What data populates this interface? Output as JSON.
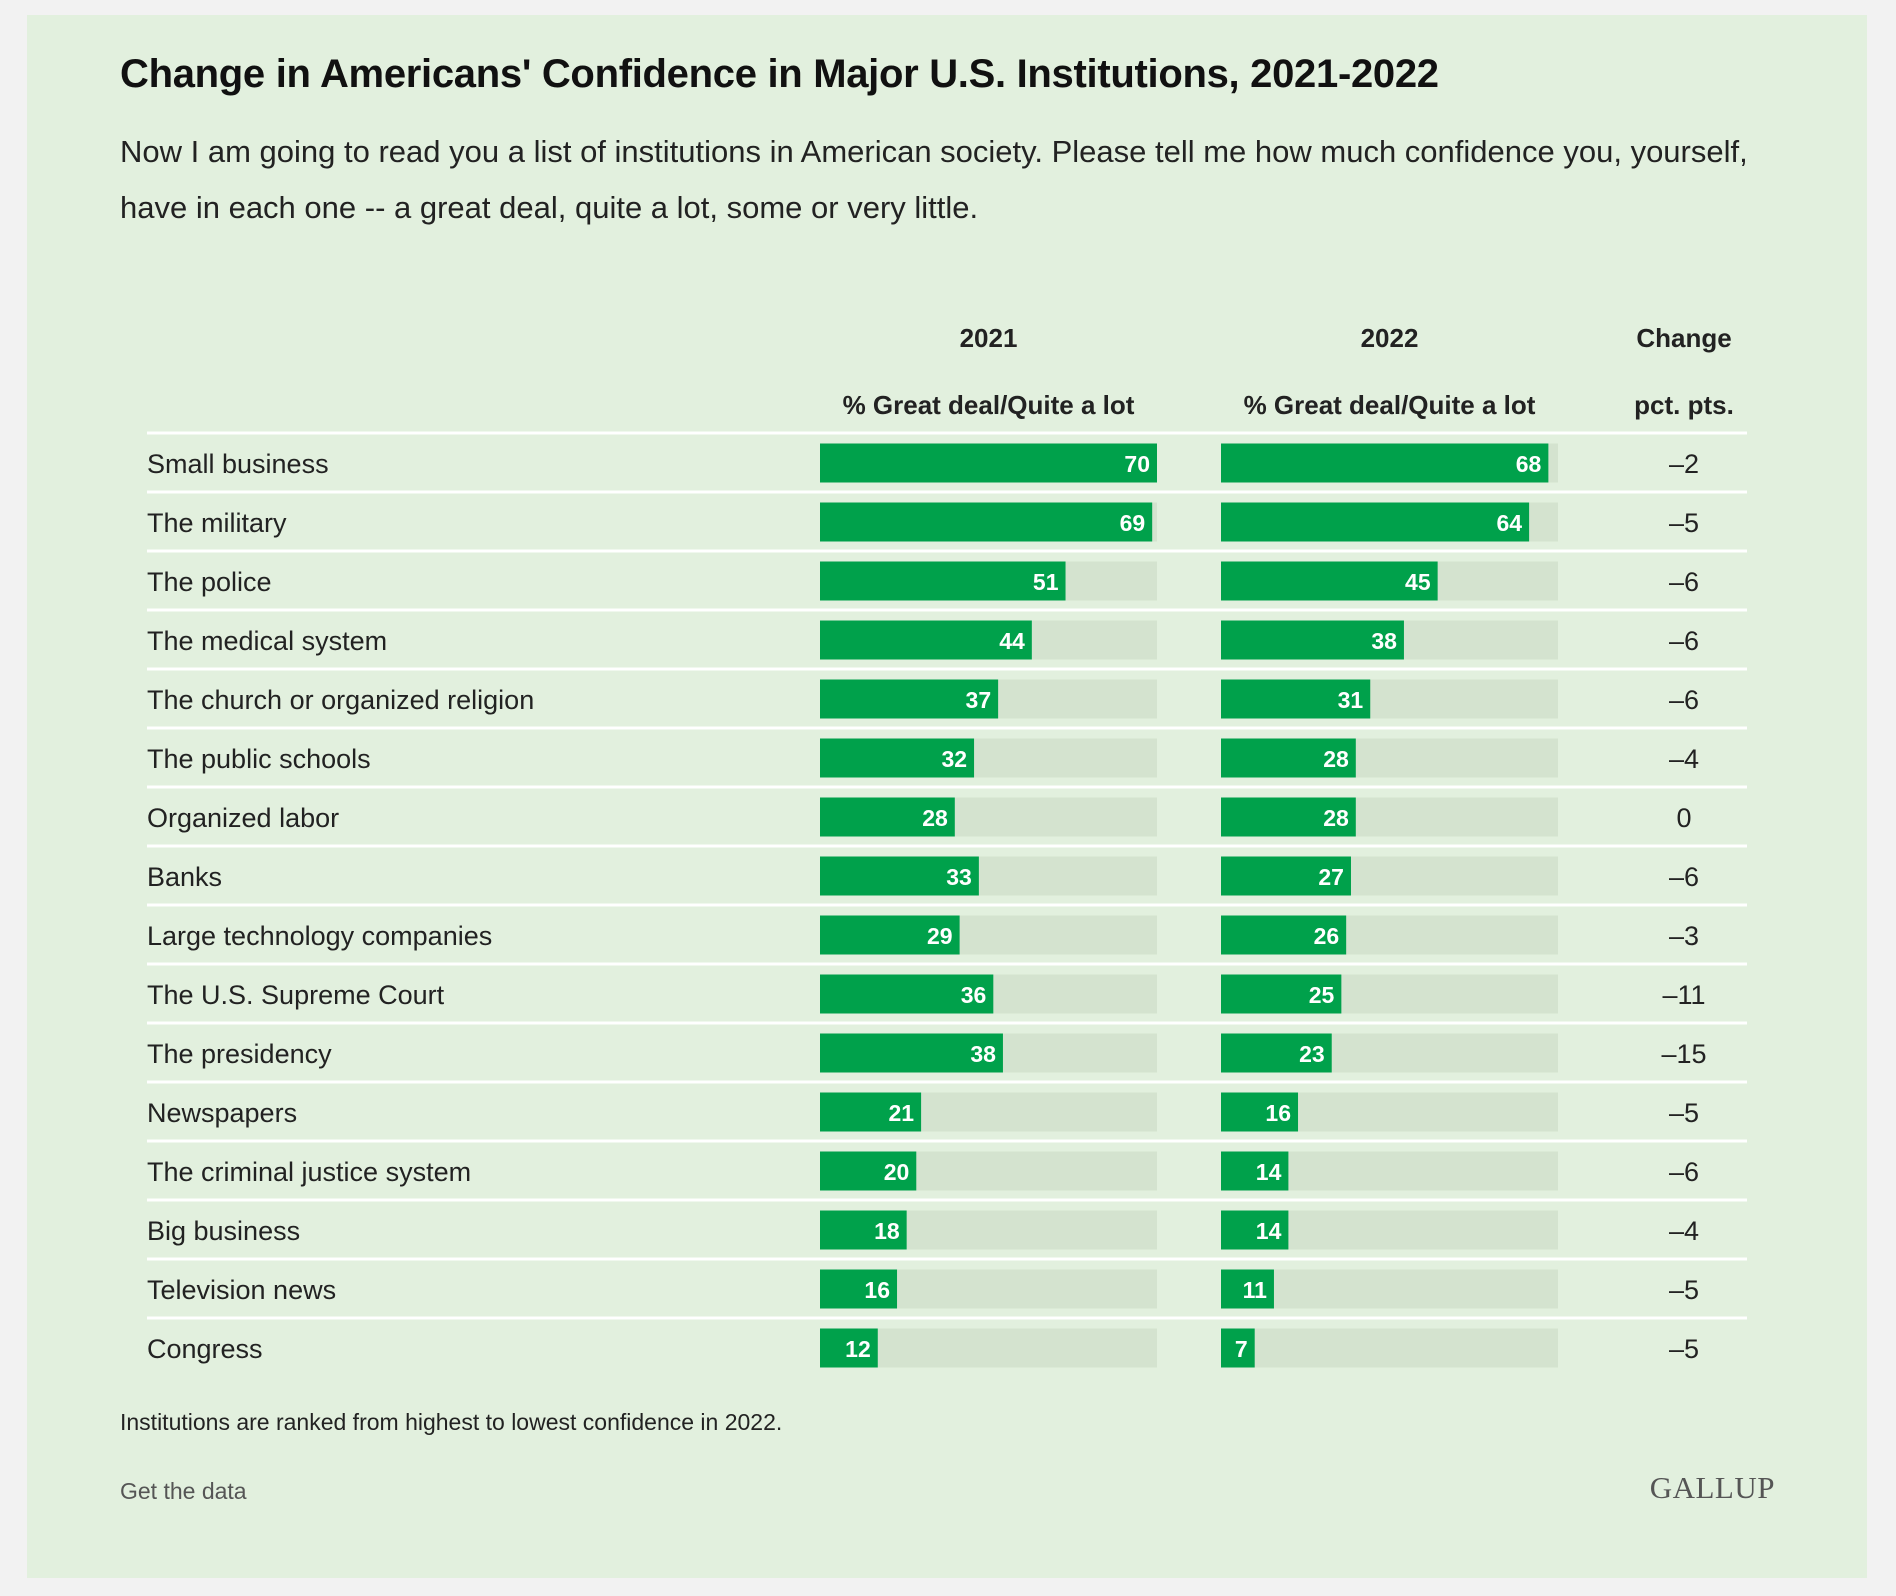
{
  "title": "Change in Americans' Confidence in Major U.S. Institutions, 2021-2022",
  "subtitle": "Now I am going to read you a list of institutions in American society. Please tell me how much confidence you, yourself, have in each one -- a great deal, quite a lot, some or very little.",
  "footnote": "Institutions are ranked from highest to lowest confidence in 2022.",
  "get_data_label": "Get the data",
  "brand": "GALLUP",
  "colors": {
    "background": "#e2f0de",
    "bar": "#00a14b",
    "track": "#d4e3cf",
    "separator": "#ffffff",
    "text": "#222222"
  },
  "chart_data": {
    "type": "bar",
    "orientation": "horizontal",
    "xlim": [
      0,
      70
    ],
    "grid": false,
    "columns": [
      {
        "year": "2021",
        "label": "% Great deal/Quite a lot"
      },
      {
        "year": "2022",
        "label": "% Great deal/Quite a lot"
      },
      {
        "year": "Change",
        "label": "pct. pts."
      }
    ],
    "categories": [
      "Small business",
      "The military",
      "The police",
      "The medical system",
      "The church or organized religion",
      "The public schools",
      "Organized labor",
      "Banks",
      "Large technology companies",
      "The U.S. Supreme Court",
      "The presidency",
      "Newspapers",
      "The criminal justice system",
      "Big business",
      "Television news",
      "Congress"
    ],
    "series": [
      {
        "name": "2021",
        "values": [
          70,
          69,
          51,
          44,
          37,
          32,
          28,
          33,
          29,
          36,
          38,
          21,
          20,
          18,
          16,
          12
        ]
      },
      {
        "name": "2022",
        "values": [
          68,
          64,
          45,
          38,
          31,
          28,
          28,
          27,
          26,
          25,
          23,
          16,
          14,
          14,
          11,
          7
        ]
      }
    ],
    "change": [
      "–2",
      "–5",
      "–6",
      "–6",
      "–6",
      "–4",
      "0",
      "–6",
      "–3",
      "–11",
      "–15",
      "–5",
      "–6",
      "–4",
      "–5",
      "–5"
    ]
  }
}
